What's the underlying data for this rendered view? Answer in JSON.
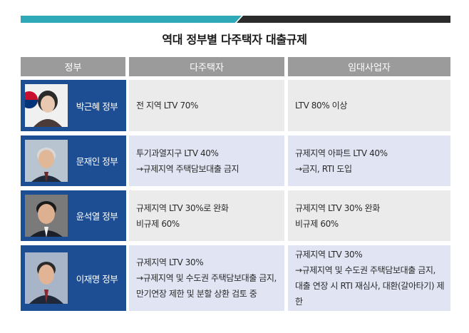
{
  "title": "역대 정부별 다주택자 대출규제",
  "headers": {
    "government": "정부",
    "multi_home": "다주택자",
    "rental_business": "임대사업자"
  },
  "rows": [
    {
      "government": "박근혜 정부",
      "multi_home": [
        "전 지역 LTV 70%"
      ],
      "rental_business": [
        "LTV 80% 이상"
      ]
    },
    {
      "government": "문재인 정부",
      "multi_home": [
        "투기과열지구 LTV 40%",
        "→규제지역 주택담보대출 금지"
      ],
      "rental_business": [
        "규제지역 아파트 LTV 40%",
        "→금지, RTI 도입"
      ]
    },
    {
      "government": "윤석열 정부",
      "multi_home": [
        "규제지역 LTV 30%로 완화",
        "비규제 60%"
      ],
      "rental_business": [
        "규제지역 LTV 30% 완화",
        "비규제 60%"
      ]
    },
    {
      "government": "이재명 정부",
      "multi_home": [
        "규제지역 LTV 30%",
        "→규제지역 및 수도권 주택담보대출 금지,",
        "만기연장 제한 및 분할 상환 검토 중"
      ],
      "rental_business": [
        "규제지역 LTV 30%",
        "→규제지역 및 수도권 주택담보대출 금지,",
        "대출 연장 시 RTI 재심사, 대환(갈아타기) 제한"
      ]
    }
  ],
  "colors": {
    "header_bg": "#9b9b9b",
    "government_bg": "#1d4e94",
    "row_gray": "#ebebeb",
    "row_blue": "#e1e5f3",
    "accent_teal": "#2fa8b8"
  }
}
